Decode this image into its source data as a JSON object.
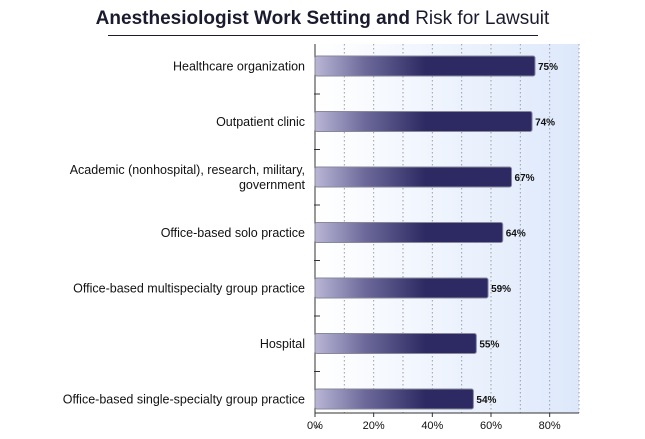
{
  "title": {
    "bold": "Anesthesiologist Work Setting",
    "and": "and",
    "rest": "Risk for Lawsuit"
  },
  "colors": {
    "bar_dark": "#2d2a63",
    "bar_light": "#b9b6d6",
    "bar_mid": "#6d6a9b",
    "bar_border": "#888899",
    "plot_bg_start": "#ffffff",
    "plot_bg_end": "#dde8fb",
    "grid": "#9aa0aa"
  },
  "chart_data": {
    "type": "bar",
    "orientation": "horizontal",
    "title": "Anesthesiologist Work Setting and Risk for Lawsuit",
    "categories": [
      [
        "Healthcare organization"
      ],
      [
        "Outpatient clinic"
      ],
      [
        "Academic (nonhospital), research, military,",
        "government"
      ],
      [
        "Office-based solo practice"
      ],
      [
        "Office-based multispecialty group practice"
      ],
      [
        "Hospital"
      ],
      [
        "Office-based single-specialty group practice"
      ]
    ],
    "values": [
      75,
      74,
      67,
      64,
      59,
      55,
      54
    ],
    "value_labels": [
      "75%",
      "74%",
      "67%",
      "64%",
      "59%",
      "55%",
      "54%"
    ],
    "xlim": [
      0,
      90
    ],
    "xticks": [
      0,
      20,
      40,
      60,
      80
    ],
    "xtick_labels": [
      "0%",
      "20%",
      "40%",
      "60%",
      "80%"
    ],
    "minor_grid_step": 10,
    "grid": true,
    "xlabel": "",
    "ylabel": ""
  }
}
